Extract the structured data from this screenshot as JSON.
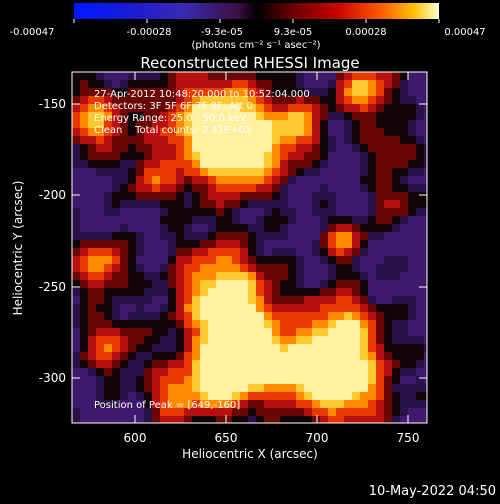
{
  "colorbar": {
    "tick_labels": [
      "-0.00047",
      "-0.00028",
      "-9.3e-05",
      "9.3e-05",
      "0.00028",
      "0.00047"
    ],
    "units_label": "(photons cm⁻² s⁻¹ asec⁻²)"
  },
  "plot": {
    "title": "Reconstructed RHESSI Image",
    "xlabel": "Heliocentric X (arcsec)",
    "ylabel": "Heliocentric Y (arcsec)",
    "x_ticks": [
      "600",
      "650",
      "700",
      "750"
    ],
    "y_ticks": [
      "-150",
      "-200",
      "-250",
      "-300"
    ],
    "annotations": [
      "27-Apr-2012 10:48:20.000 to 10:52:04.000",
      "Detectors: 3F 5F 6F 7F 8F, Att 0",
      "Energy Range: 25.0 - 50.0 keV",
      "Clean    Total counts: 2.41E+03"
    ],
    "peak_label": "Position of Peak = [649,-160]"
  },
  "footer_date": "10-May-2022 04:50"
}
